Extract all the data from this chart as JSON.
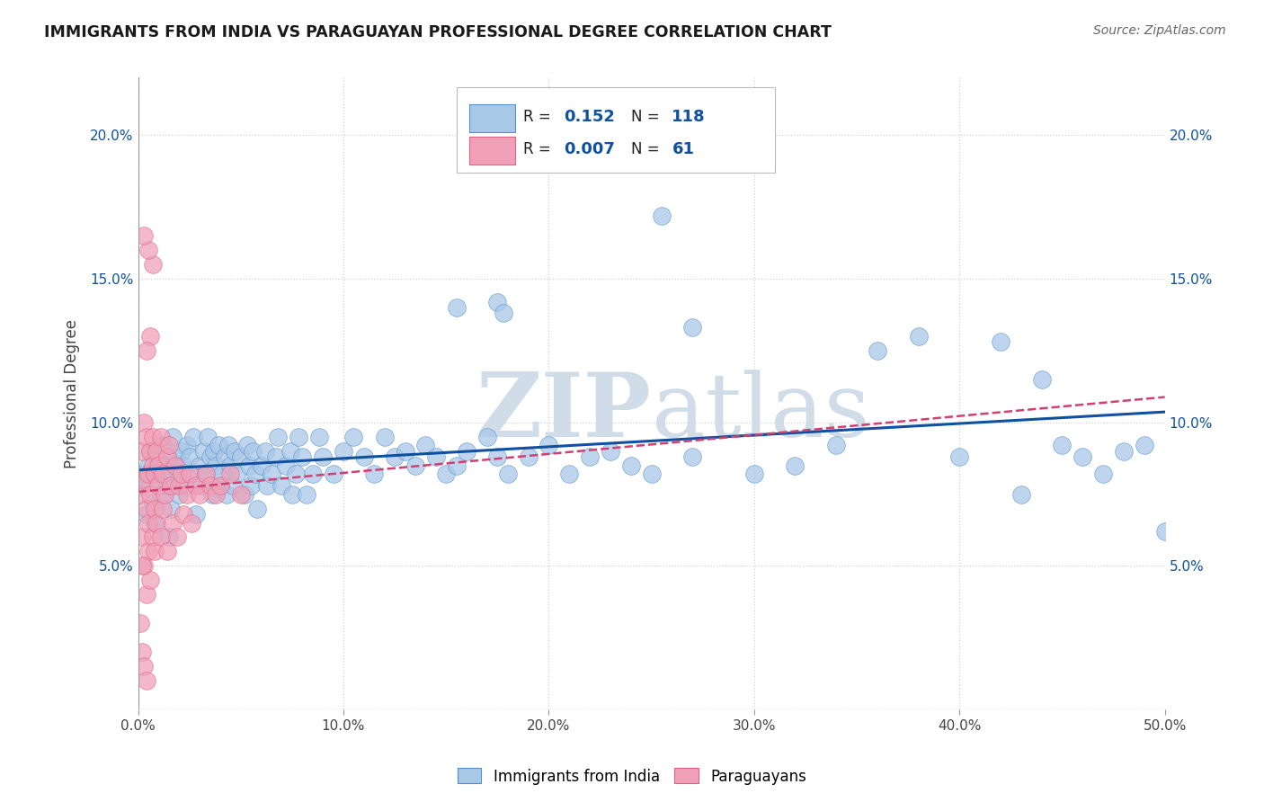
{
  "title": "IMMIGRANTS FROM INDIA VS PARAGUAYAN PROFESSIONAL DEGREE CORRELATION CHART",
  "source": "Source: ZipAtlas.com",
  "ylabel": "Professional Degree",
  "xlim": [
    0,
    0.5
  ],
  "ylim": [
    0,
    0.22
  ],
  "xticks": [
    0.0,
    0.1,
    0.2,
    0.3,
    0.4,
    0.5
  ],
  "xticklabels": [
    "0.0%",
    "10.0%",
    "20.0%",
    "30.0%",
    "40.0%",
    "50.0%"
  ],
  "yticks_left": [
    0.05,
    0.1,
    0.15,
    0.2
  ],
  "yticks_right": [
    0.05,
    0.1,
    0.15,
    0.2
  ],
  "yticklabels": [
    "5.0%",
    "10.0%",
    "15.0%",
    "20.0%"
  ],
  "india_R": 0.152,
  "india_N": 118,
  "para_R": 0.007,
  "para_N": 61,
  "india_color": "#a8c8e8",
  "india_edge_color": "#5590c8",
  "india_line_color": "#1050a0",
  "para_color": "#f0a0b8",
  "para_edge_color": "#e06080",
  "para_line_color": "#d04070",
  "watermark_color": "#d0dce8",
  "legend_label_india": "Immigrants from India",
  "legend_label_para": "Paraguayans",
  "india_x": [
    0.002,
    0.003,
    0.004,
    0.005,
    0.006,
    0.007,
    0.008,
    0.009,
    0.01,
    0.011,
    0.012,
    0.013,
    0.014,
    0.015,
    0.016,
    0.017,
    0.018,
    0.019,
    0.02,
    0.021,
    0.022,
    0.023,
    0.024,
    0.025,
    0.026,
    0.027,
    0.028,
    0.03,
    0.031,
    0.032,
    0.033,
    0.034,
    0.035,
    0.036,
    0.037,
    0.038,
    0.039,
    0.04,
    0.041,
    0.042,
    0.043,
    0.044,
    0.045,
    0.046,
    0.047,
    0.048,
    0.05,
    0.052,
    0.053,
    0.054,
    0.055,
    0.056,
    0.057,
    0.058,
    0.06,
    0.062,
    0.063,
    0.065,
    0.067,
    0.068,
    0.07,
    0.072,
    0.074,
    0.075,
    0.077,
    0.078,
    0.08,
    0.082,
    0.085,
    0.088,
    0.09,
    0.095,
    0.1,
    0.105,
    0.11,
    0.115,
    0.12,
    0.125,
    0.13,
    0.135,
    0.14,
    0.145,
    0.15,
    0.155,
    0.16,
    0.17,
    0.175,
    0.18,
    0.19,
    0.2,
    0.21,
    0.22,
    0.23,
    0.24,
    0.25,
    0.27,
    0.3,
    0.32,
    0.34,
    0.36,
    0.38,
    0.4,
    0.42,
    0.43,
    0.44,
    0.45,
    0.46,
    0.47,
    0.48,
    0.49,
    0.5,
    0.255,
    0.27,
    0.155,
    0.175,
    0.178
  ],
  "india_y": [
    0.078,
    0.082,
    0.068,
    0.085,
    0.09,
    0.072,
    0.065,
    0.088,
    0.08,
    0.075,
    0.092,
    0.085,
    0.078,
    0.06,
    0.07,
    0.095,
    0.088,
    0.082,
    0.075,
    0.09,
    0.085,
    0.078,
    0.092,
    0.088,
    0.082,
    0.095,
    0.068,
    0.085,
    0.078,
    0.09,
    0.082,
    0.095,
    0.088,
    0.075,
    0.09,
    0.085,
    0.092,
    0.078,
    0.082,
    0.088,
    0.075,
    0.092,
    0.085,
    0.078,
    0.09,
    0.082,
    0.088,
    0.075,
    0.092,
    0.085,
    0.078,
    0.09,
    0.082,
    0.07,
    0.085,
    0.09,
    0.078,
    0.082,
    0.088,
    0.095,
    0.078,
    0.085,
    0.09,
    0.075,
    0.082,
    0.095,
    0.088,
    0.075,
    0.082,
    0.095,
    0.088,
    0.082,
    0.09,
    0.095,
    0.088,
    0.082,
    0.095,
    0.088,
    0.09,
    0.085,
    0.092,
    0.088,
    0.082,
    0.085,
    0.09,
    0.095,
    0.088,
    0.082,
    0.088,
    0.092,
    0.082,
    0.088,
    0.09,
    0.085,
    0.082,
    0.088,
    0.082,
    0.085,
    0.092,
    0.125,
    0.13,
    0.088,
    0.128,
    0.075,
    0.115,
    0.092,
    0.088,
    0.082,
    0.09,
    0.092,
    0.062,
    0.172,
    0.133,
    0.14,
    0.142,
    0.138
  ],
  "para_x": [
    0.001,
    0.002,
    0.002,
    0.003,
    0.003,
    0.003,
    0.004,
    0.004,
    0.004,
    0.005,
    0.005,
    0.005,
    0.006,
    0.006,
    0.006,
    0.007,
    0.007,
    0.007,
    0.008,
    0.008,
    0.008,
    0.009,
    0.009,
    0.01,
    0.01,
    0.011,
    0.011,
    0.012,
    0.012,
    0.013,
    0.014,
    0.014,
    0.015,
    0.016,
    0.017,
    0.018,
    0.019,
    0.02,
    0.021,
    0.022,
    0.024,
    0.025,
    0.026,
    0.028,
    0.03,
    0.033,
    0.035,
    0.038,
    0.04,
    0.045,
    0.05,
    0.007,
    0.006,
    0.005,
    0.004,
    0.003,
    0.002,
    0.001,
    0.002,
    0.003,
    0.004
  ],
  "para_y": [
    0.075,
    0.06,
    0.09,
    0.05,
    0.08,
    0.1,
    0.04,
    0.07,
    0.095,
    0.055,
    0.082,
    0.065,
    0.075,
    0.09,
    0.045,
    0.085,
    0.06,
    0.095,
    0.07,
    0.082,
    0.055,
    0.09,
    0.065,
    0.078,
    0.085,
    0.06,
    0.095,
    0.07,
    0.082,
    0.075,
    0.088,
    0.055,
    0.092,
    0.078,
    0.065,
    0.085,
    0.06,
    0.078,
    0.082,
    0.068,
    0.075,
    0.082,
    0.065,
    0.078,
    0.075,
    0.082,
    0.078,
    0.075,
    0.078,
    0.082,
    0.075,
    0.155,
    0.13,
    0.16,
    0.125,
    0.165,
    0.05,
    0.03,
    0.02,
    0.015,
    0.01
  ]
}
